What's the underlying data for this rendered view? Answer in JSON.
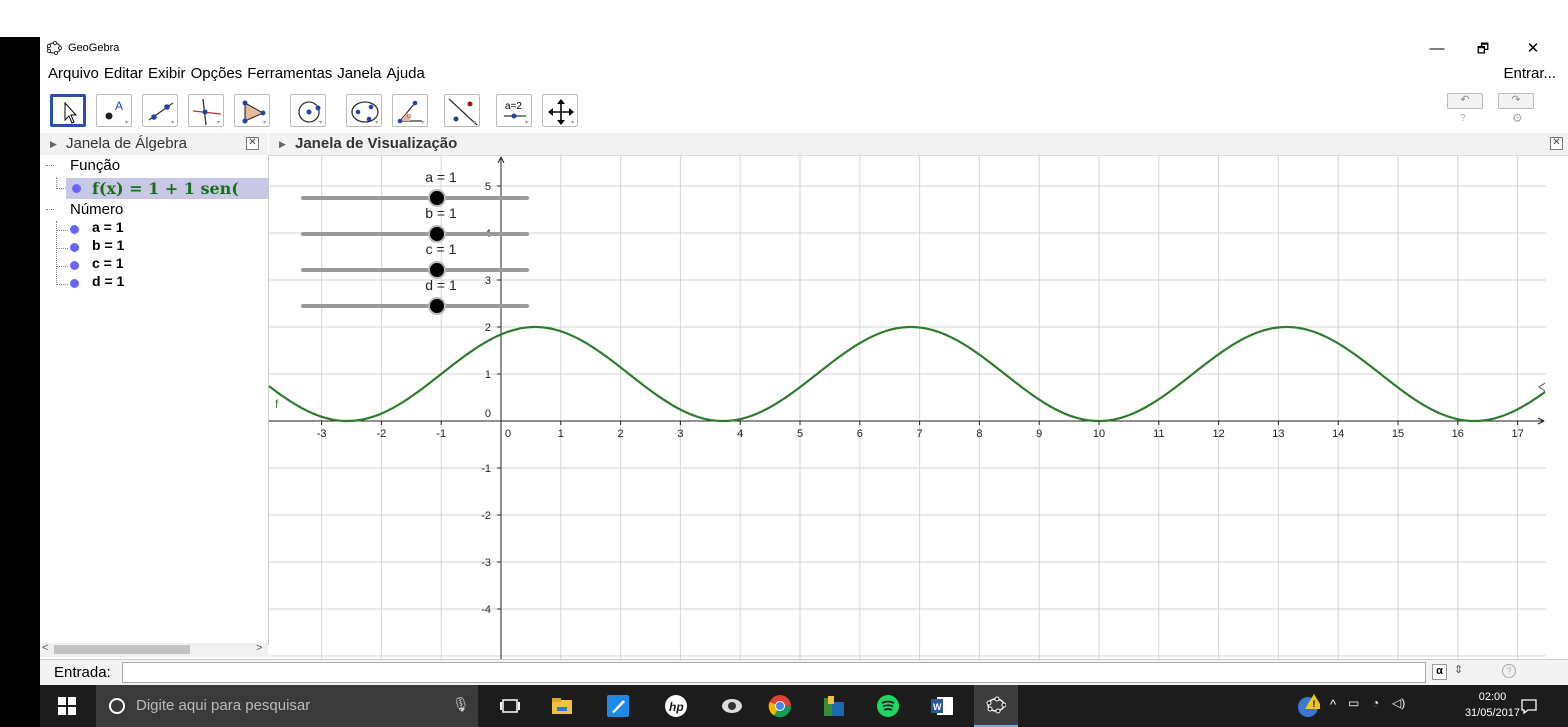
{
  "window": {
    "title": "GeoGebra",
    "controls": [
      "—",
      "🗗",
      "✕"
    ]
  },
  "menu": {
    "items": [
      "Arquivo",
      "Editar",
      "Exibir",
      "Opções",
      "Ferramentas",
      "Janela",
      "Ajuda"
    ],
    "login": "Entrar..."
  },
  "toolbar": {
    "tools": [
      "move-tool",
      "point-tool",
      "line-tool",
      "perpendicular-tool",
      "polygon-tool",
      "circle-tool",
      "conic-tool",
      "angle-tool",
      "reflect-tool",
      "slider-tool",
      "move-graphics-tool"
    ],
    "slider_label": "a=2",
    "undo_symbol": "↶",
    "redo_symbol": "↷",
    "help_symbol": "?",
    "settings_symbol": "⚙"
  },
  "algebra": {
    "title": "Janela de Álgebra",
    "group_function": "Função",
    "function_expr": "f(x) = 1 + 1 sen(",
    "group_number": "Número",
    "numbers": [
      "a = 1",
      "b = 1",
      "c = 1",
      "d = 1"
    ]
  },
  "graphics": {
    "title": "Janela de Visualização",
    "sliders": [
      "a = 1",
      "b = 1",
      "c = 1",
      "d = 1"
    ],
    "function_label": "f",
    "curve_color": "#2e7d2e",
    "x_ticks": [
      "-3",
      "-2",
      "-1",
      "0",
      "1",
      "2",
      "3",
      "4",
      "5",
      "6",
      "7",
      "8",
      "9",
      "10",
      "11",
      "12",
      "13",
      "14",
      "15",
      "16",
      "17"
    ],
    "y_ticks_pos": [
      "5",
      "4",
      "3",
      "2",
      "1"
    ],
    "y_ticks_neg": [
      "-1",
      "-2",
      "-3",
      "-4"
    ]
  },
  "input": {
    "label": "Entrada:",
    "alpha_button": "α",
    "help_icon": "?"
  },
  "taskbar": {
    "search_placeholder": "Digite aqui para pesquisar",
    "time": "02:00",
    "date": "31/05/2017"
  }
}
